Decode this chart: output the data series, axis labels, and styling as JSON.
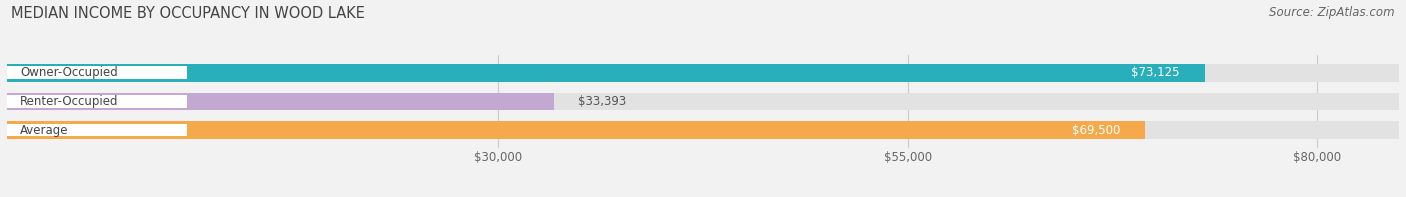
{
  "title": "MEDIAN INCOME BY OCCUPANCY IN WOOD LAKE",
  "source": "Source: ZipAtlas.com",
  "categories": [
    "Owner-Occupied",
    "Renter-Occupied",
    "Average"
  ],
  "values": [
    73125,
    33393,
    69500
  ],
  "bar_colors": [
    "#29AEBB",
    "#C3A8D1",
    "#F5A94A"
  ],
  "value_labels": [
    "$73,125",
    "$33,393",
    "$69,500"
  ],
  "x_ticks": [
    30000,
    55000,
    80000
  ],
  "x_tick_labels": [
    "$30,000",
    "$55,000",
    "$80,000"
  ],
  "x_min": 0,
  "x_max": 85000,
  "background_color": "#f2f2f2",
  "bar_bg_color": "#e2e2e2",
  "title_fontsize": 10.5,
  "source_fontsize": 8.5,
  "label_fontsize": 8.5,
  "tick_fontsize": 8.5,
  "bar_height": 0.62,
  "bar_label_color_inside": "#ffffff",
  "bar_label_color_outside": "#555555",
  "category_label_color": "#444444",
  "grid_color": "#cccccc",
  "outside_threshold": 0.55
}
